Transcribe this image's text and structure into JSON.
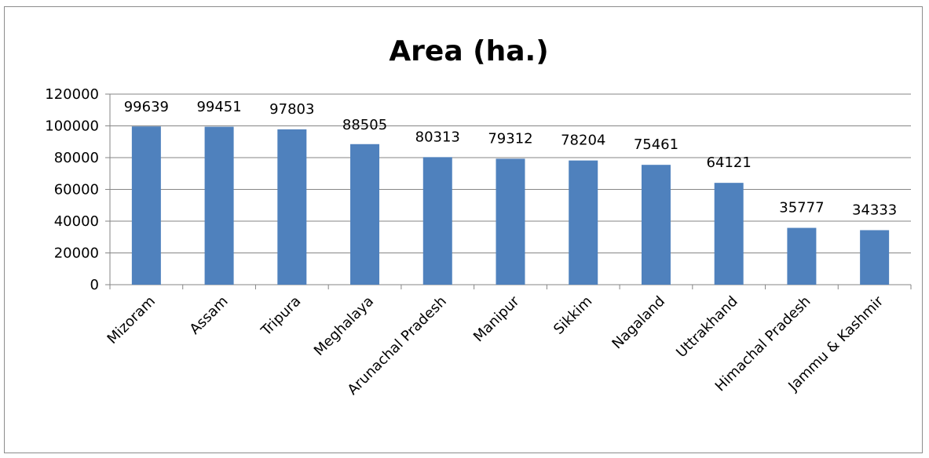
{
  "chart_data": {
    "type": "bar",
    "title": "Area (ha.)",
    "xlabel": "",
    "ylabel": "",
    "categories": [
      "Mizoram",
      "Assam",
      "Tripura",
      "Meghalaya",
      "Arunachal Pradesh",
      "Manipur",
      "Sikkim",
      "Nagaland",
      "Uttrakhand",
      "Himachal Pradesh",
      "Jammu & Kashmir"
    ],
    "series": [
      {
        "values": [
          99639,
          99451,
          97803,
          88505,
          80313,
          79312,
          78204,
          75461,
          64121,
          35777,
          34333
        ],
        "color": "#4F81BD"
      }
    ],
    "data_labels": [
      "99639",
      "99451",
      "97803",
      "88505",
      "80313",
      "79312",
      "78204",
      "75461",
      "64121",
      "35777",
      "34333"
    ],
    "ylim": [
      0,
      120000
    ],
    "yticks": [
      0,
      20000,
      40000,
      60000,
      80000,
      100000,
      120000
    ],
    "ytick_labels": [
      "0",
      "20000",
      "40000",
      "60000",
      "80000",
      "100000",
      "120000"
    ],
    "grid": true,
    "legend": "none",
    "colors": {
      "bar": "#4F81BD",
      "gridline": "#868686",
      "axis": "#868686",
      "frame": "#8C8C8C"
    }
  }
}
